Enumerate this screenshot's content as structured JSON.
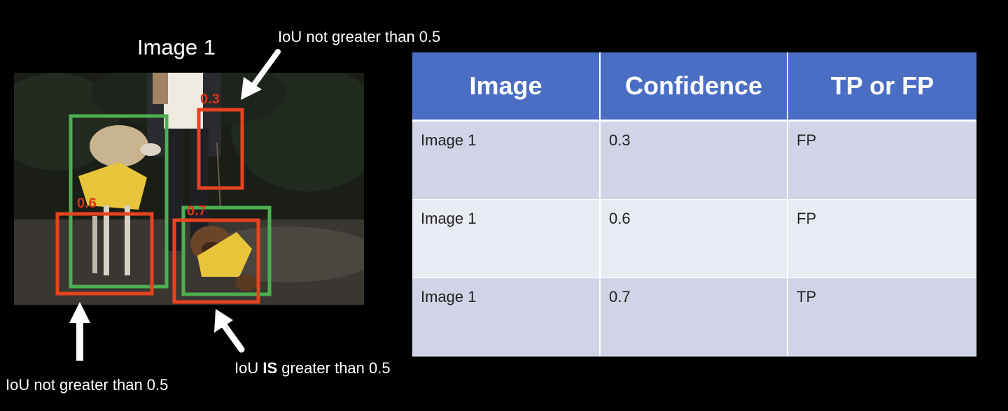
{
  "image_title": "Image 1",
  "annotations": {
    "top": "IoU not greater than 0.5",
    "bottom_left": "IoU not greater than 0.5",
    "bottom_right_prefix": "IoU ",
    "bottom_right_bold": "IS",
    "bottom_right_suffix": " greater than 0.5"
  },
  "box_labels": {
    "box_a": "0.3",
    "box_b": "0.6",
    "box_c": "0.7"
  },
  "colors": {
    "ground_truth_box": "#4caf50",
    "prediction_box": "#e8431f",
    "table_header": "#4a6ec4",
    "row_odd": "#d0d4e6",
    "row_even": "#e9ebf3"
  },
  "table": {
    "headers": [
      "Image",
      "Confidence",
      "TP or FP"
    ],
    "rows": [
      [
        "Image 1",
        "0.3",
        "FP"
      ],
      [
        "Image 1",
        "0.6",
        "FP"
      ],
      [
        "Image 1",
        "0.7",
        "TP"
      ]
    ]
  }
}
